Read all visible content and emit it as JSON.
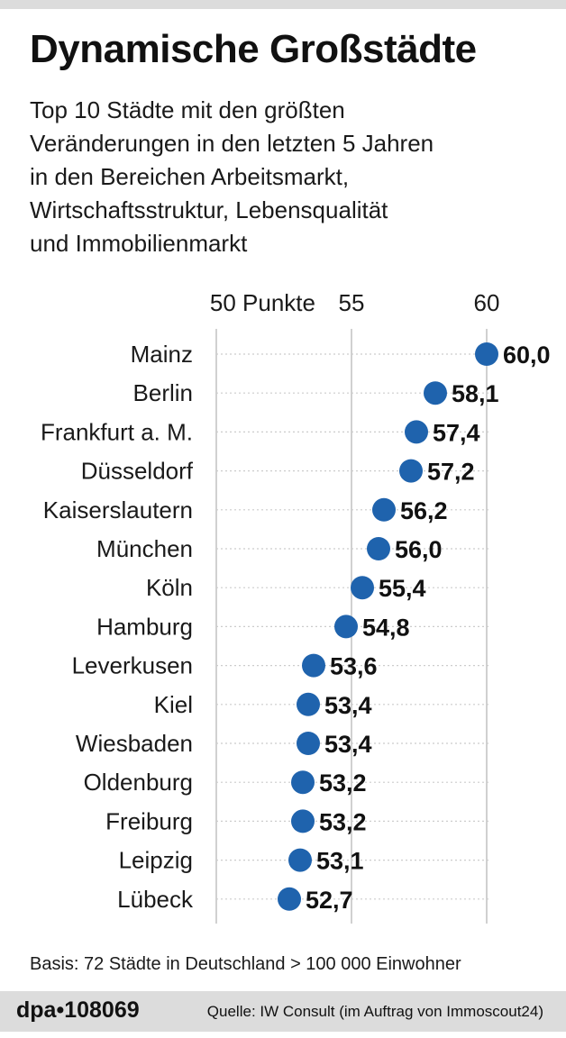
{
  "title": "Dynamische Großstädte",
  "subtitle": [
    "Top 10 Städte mit den größten",
    "Veränderungen in den letzten 5 Jahren",
    "in den Bereichen Arbeitsmarkt,",
    "Wirtschaftsstruktur, Lebensqualität",
    "und Immobilienmarkt"
  ],
  "basis": "Basis: 72 Städte in Deutschland > 100 000 Einwohner",
  "footer": {
    "brand": "dpa•108069",
    "source": "Quelle: IW Consult (im Auftrag von Immoscout24)"
  },
  "colors": {
    "marker": "#1f63ad",
    "grid": "#bdbdbd",
    "gridline_dotted": "#cccccc"
  },
  "chart_data": {
    "type": "scatter",
    "orientation": "horizontal-dot",
    "title": "Dynamische Großstädte",
    "xlabel": "Punkte",
    "xlim": [
      50,
      61
    ],
    "ticks": [
      {
        "value": 50,
        "label": "50 Punkte"
      },
      {
        "value": 55,
        "label": "55"
      },
      {
        "value": 60,
        "label": "60"
      }
    ],
    "grid": true,
    "categories": [
      "Mainz",
      "Berlin",
      "Frankfurt a. M.",
      "Düsseldorf",
      "Kaiserslautern",
      "München",
      "Köln",
      "Hamburg",
      "Leverkusen",
      "Kiel",
      "Wiesbaden",
      "Oldenburg",
      "Freiburg",
      "Leipzig",
      "Lübeck"
    ],
    "values": [
      60.0,
      58.1,
      57.4,
      57.2,
      56.2,
      56.0,
      55.4,
      54.8,
      53.6,
      53.4,
      53.4,
      53.2,
      53.2,
      53.1,
      52.7
    ],
    "value_labels": [
      "60,0",
      "58,1",
      "57,4",
      "57,2",
      "56,2",
      "56,0",
      "55,4",
      "54,8",
      "53,6",
      "53,4",
      "53,4",
      "53,2",
      "53,2",
      "53,1",
      "52,7"
    ]
  }
}
